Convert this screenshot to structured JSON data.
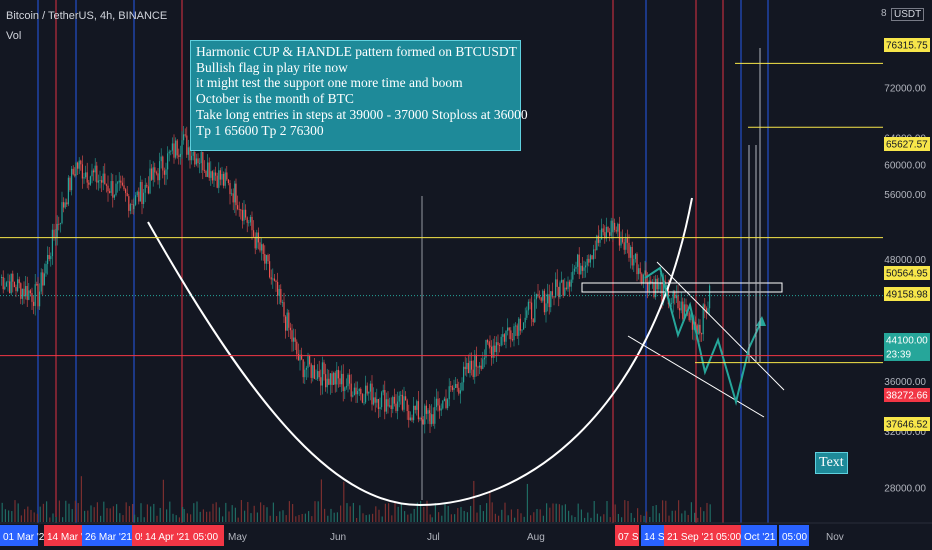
{
  "header": {
    "symbol_title": "Bitcoin / TetherUS, 4h, BINANCE",
    "volume_label": "Vol",
    "axis_unit": "USDT",
    "axis_top_fragment": "8"
  },
  "annotation": {
    "lines": [
      "Harmonic CUP & HANDLE pattern formed on BTCUSDT",
      "Bullish flag in play rite now",
      "it might test the support one more time and boom",
      "October is the month of BTC",
      "Take long entries in steps at 39000 - 37000 Stoploss  at 36000",
      "Tp 1 65600 Tp 2 76300"
    ],
    "text_badge": "Text"
  },
  "price_axis": {
    "ticks": [
      "72000.00",
      "64000.00",
      "60000.00",
      "56000.00",
      "48000.00",
      "40000.00",
      "36000.00",
      "32000.00",
      "28000.00"
    ],
    "price_labels": [
      {
        "value": "76315.75",
        "kind": "yellow"
      },
      {
        "value": "65627.57",
        "kind": "yellow"
      },
      {
        "value": "50564.95",
        "kind": "yellow"
      },
      {
        "value": "49158.98",
        "kind": "yellow"
      },
      {
        "value": "44100.00",
        "kind": "current"
      },
      {
        "value": "23:39",
        "kind": "countdown"
      },
      {
        "value": "38272.66",
        "kind": "red"
      },
      {
        "value": "37646.52",
        "kind": "yellow"
      }
    ]
  },
  "time_axis": {
    "plain_labels": [
      "May",
      "Jun",
      "Jul",
      "Aug",
      "Nov"
    ],
    "badges": [
      {
        "text": "01 Mar '2",
        "color": "#2962ff"
      },
      {
        "text": "14 Mar '2",
        "color": "#f23645"
      },
      {
        "text": "26 Mar '21",
        "color": "#2962ff"
      },
      {
        "text": "05",
        "color": "#f23645"
      },
      {
        "text": "14 Apr '21",
        "color": "#f23645"
      },
      {
        "text": "05:00",
        "color": "#f23645"
      },
      {
        "text": "07 S",
        "color": "#f23645"
      },
      {
        "text": "14 S",
        "color": "#2962ff"
      },
      {
        "text": "21 Sep '21",
        "color": "#f23645"
      },
      {
        "text": "05:00",
        "color": "#f23645"
      },
      {
        "text": "Oct '21",
        "color": "#2962ff"
      },
      {
        "text": "05:00",
        "color": "#2962ff"
      }
    ]
  },
  "colors": {
    "background": "#131722",
    "up": "#26a69a",
    "down": "#ef5350",
    "yellow_level": "#f7e64a",
    "red_level": "#f23645",
    "teal_box": "#1e8a99"
  },
  "chart_data": {
    "type": "candlestick",
    "instrument": "Bitcoin / TetherUS",
    "interval": "4h",
    "exchange": "BINANCE",
    "levels": [
      76315.75,
      65627.57,
      50564.95,
      49158.98,
      44100.0,
      38272.66,
      37646.52
    ],
    "current_price": 44100.0,
    "ylim": [
      26000,
      84000
    ],
    "price_path": [
      {
        "t": "Feb '21",
        "p": 46000
      },
      {
        "t": "01 Mar '21",
        "p": 44000
      },
      {
        "t": "14 Mar '21",
        "p": 60000
      },
      {
        "t": "26 Mar '21",
        "p": 55000
      },
      {
        "t": "14 Apr '21",
        "p": 63500
      },
      {
        "t": "May '21",
        "p": 56000
      },
      {
        "t": "May '21",
        "p": 37500
      },
      {
        "t": "Jun '21",
        "p": 36000
      },
      {
        "t": "Jul '21",
        "p": 33000
      },
      {
        "t": "Aug '21",
        "p": 39000
      },
      {
        "t": "Aug '21",
        "p": 45000
      },
      {
        "t": "07 Sep '21",
        "p": 52000
      },
      {
        "t": "14 Sep '21",
        "p": 46000
      },
      {
        "t": "21 Sep '21",
        "p": 41000
      },
      {
        "t": "21 Sep '21",
        "p": 44100
      }
    ]
  }
}
